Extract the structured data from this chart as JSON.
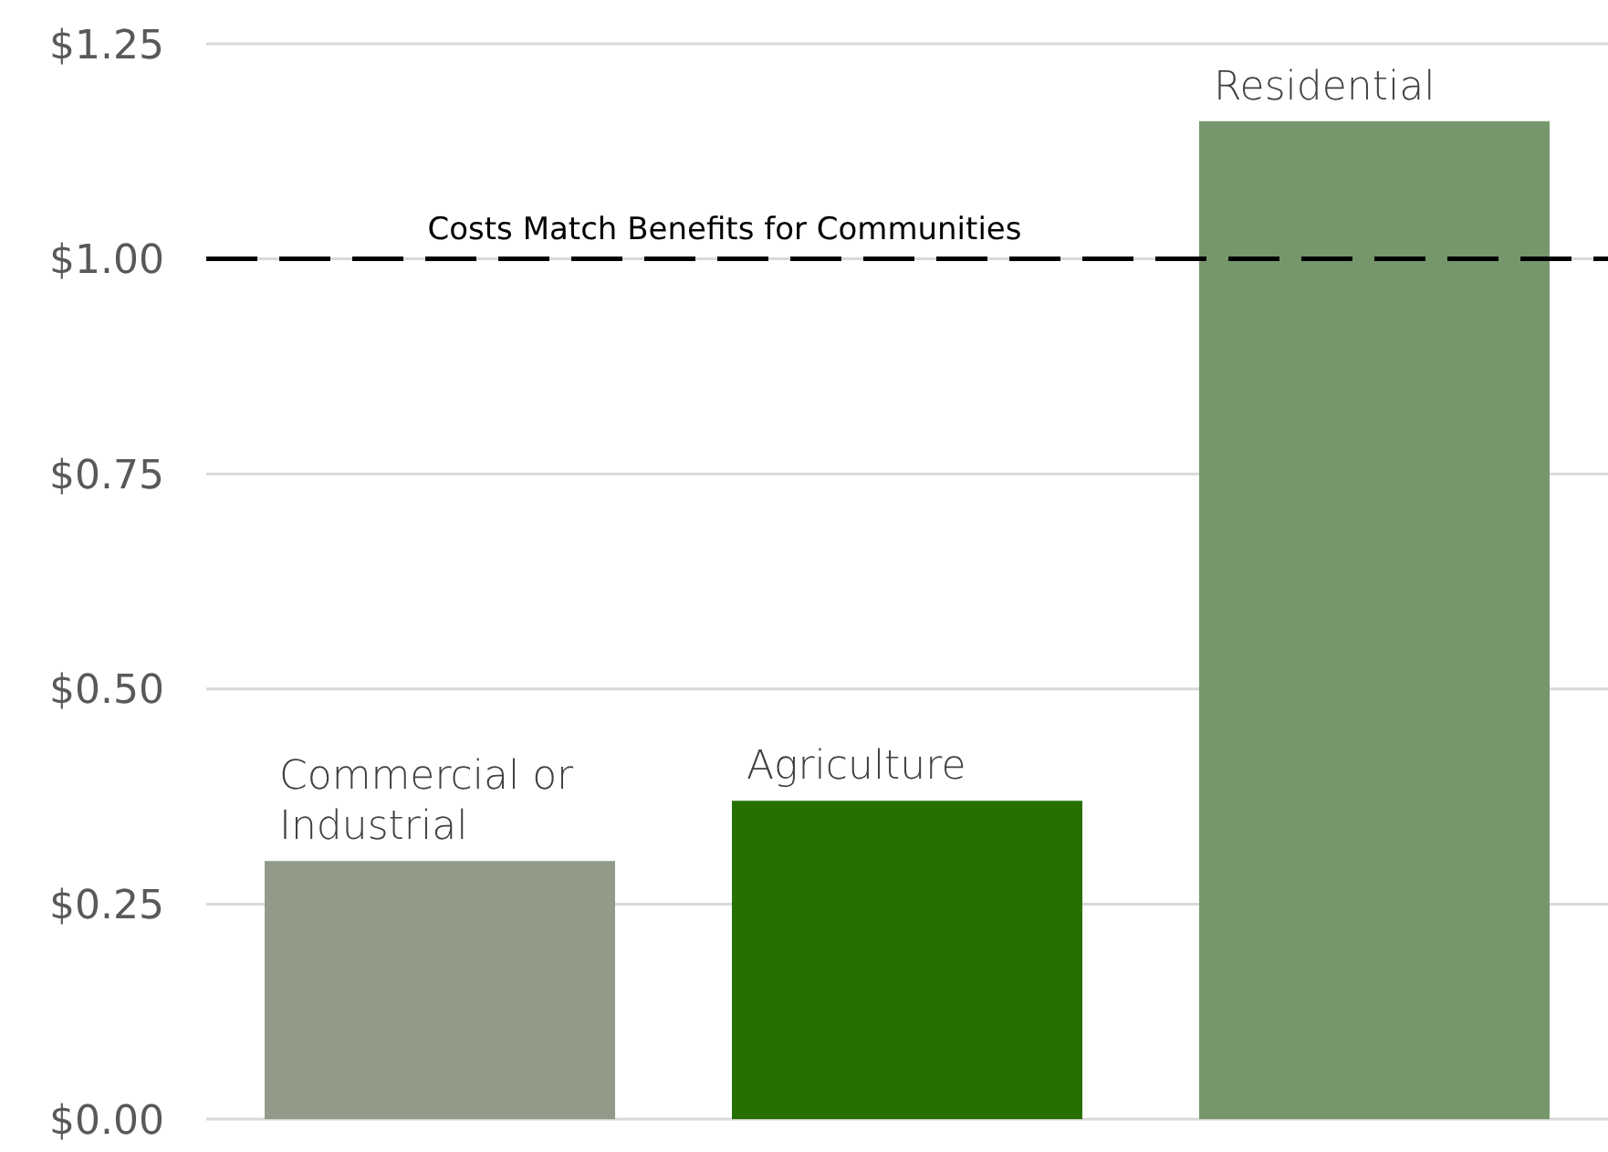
{
  "chart_data": {
    "type": "bar",
    "categories": [
      "Commercial or Industrial",
      "Agriculture",
      "Residential"
    ],
    "values": [
      0.3,
      0.37,
      1.16
    ],
    "colors": [
      "#919b87",
      "#277000",
      "#76976b"
    ],
    "ylim": [
      0,
      1.25
    ],
    "yticks": [
      {
        "value": 0,
        "label": "$0.00"
      },
      {
        "value": 0.25,
        "label": "$0.25"
      },
      {
        "value": 0.5,
        "label": "$0.50"
      },
      {
        "value": 0.75,
        "label": "$0.75"
      },
      {
        "value": 1,
        "label": "$1.00"
      },
      {
        "value": 1.25,
        "label": "$1.25"
      }
    ],
    "ref_lines": [
      {
        "axis": "y",
        "value": 1,
        "label": "Costs Match Benefits for Communities",
        "color": "#000000",
        "line_style": "dashed"
      }
    ],
    "grid": "y",
    "tick_labels": "y"
  }
}
